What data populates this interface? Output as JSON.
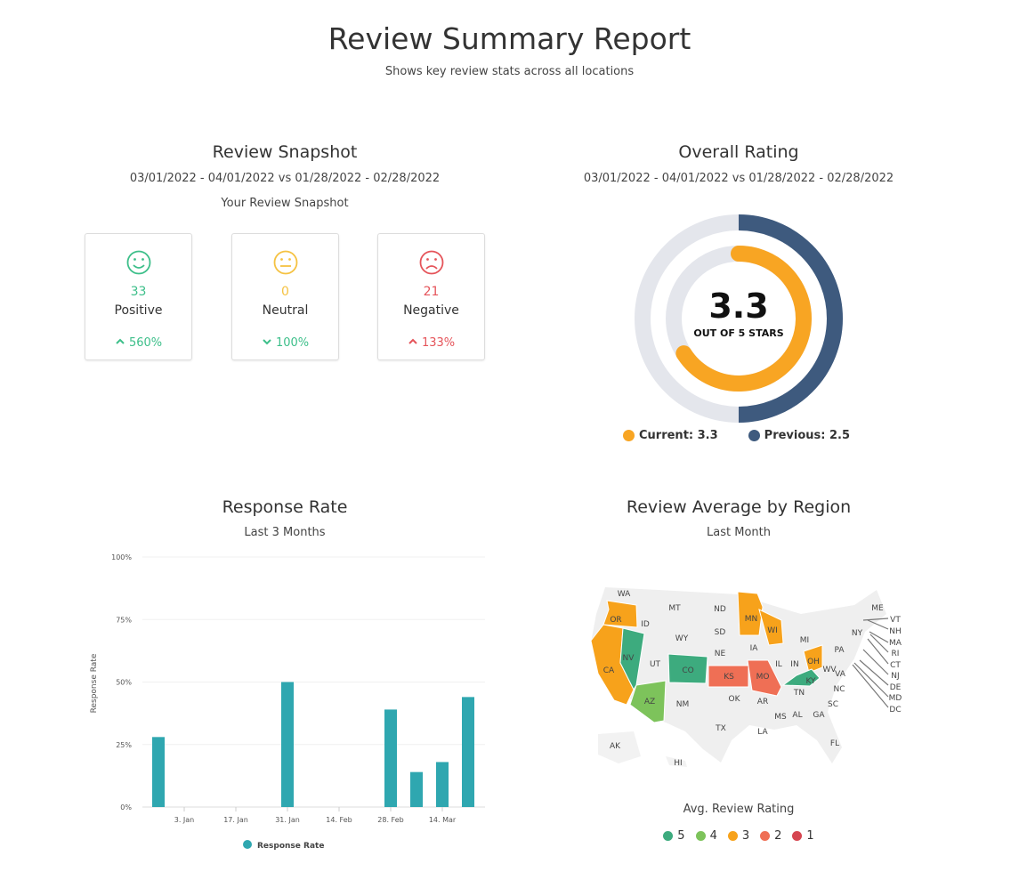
{
  "header": {
    "title": "Review Summary Report",
    "subtitle": "Shows key review stats across all locations"
  },
  "snapshot": {
    "title": "Review Snapshot",
    "date_range": "03/01/2022 - 04/01/2022 vs 01/28/2022 - 02/28/2022",
    "caption": "Your Review Snapshot",
    "cards": [
      {
        "icon": "smile-face-icon",
        "count": "33",
        "label": "Positive",
        "change": "560%",
        "direction": "up",
        "color": "#3dbf8a",
        "change_color": "#3dbf8a"
      },
      {
        "icon": "neutral-face-icon",
        "count": "0",
        "label": "Neutral",
        "change": "100%",
        "direction": "down",
        "color": "#f5c242",
        "change_color": "#3dbf8a"
      },
      {
        "icon": "sad-face-icon",
        "count": "21",
        "label": "Negative",
        "change": "133%",
        "direction": "up",
        "color": "#e5545a",
        "change_color": "#e5545a"
      }
    ]
  },
  "overall": {
    "title": "Overall Rating",
    "date_range": "03/01/2022 - 04/01/2022 vs 01/28/2022 - 02/28/2022",
    "value": "3.3",
    "value_caption": "OUT OF 5 STARS",
    "max": 5,
    "current": 3.3,
    "previous": 2.5,
    "current_label": "Current: 3.3",
    "previous_label": "Previous: 2.5",
    "current_color": "#f8a523",
    "previous_color": "#3e5a7e",
    "track_color": "#e4e6ec"
  },
  "response": {
    "title": "Response Rate",
    "subtitle": "Last 3 Months",
    "chart_data": {
      "type": "bar",
      "ylabel": "Response Rate",
      "ylim": [
        0,
        100
      ],
      "yticks": [
        "0%",
        "25%",
        "50%",
        "75%",
        "100%"
      ],
      "xticks": [
        "3. Jan",
        "17. Jan",
        "31. Jan",
        "14. Feb",
        "28. Feb",
        "14. Mar"
      ],
      "categories": [
        "2021-12-27",
        "2022-01-03",
        "2022-01-10",
        "2022-01-17",
        "2022-01-24",
        "2022-01-31",
        "2022-02-07",
        "2022-02-14",
        "2022-02-21",
        "2022-02-28",
        "2022-03-07",
        "2022-03-14",
        "2022-03-21"
      ],
      "series": [
        {
          "name": "Response Rate",
          "values": [
            28,
            0,
            0,
            0,
            0,
            50,
            0,
            0,
            0,
            39,
            14,
            18,
            44
          ],
          "color": "#2fa7b0"
        }
      ],
      "grid": true,
      "legend": "bottom"
    }
  },
  "region": {
    "title": "Review Average by Region",
    "subtitle": "Last Month",
    "legend_title": "Avg. Review Rating",
    "legend": [
      {
        "label": "5",
        "color": "#3dab7e"
      },
      {
        "label": "4",
        "color": "#7dc35b"
      },
      {
        "label": "3",
        "color": "#f7a21b"
      },
      {
        "label": "2",
        "color": "#ef6f55"
      },
      {
        "label": "1",
        "color": "#d64550"
      }
    ],
    "rated_states": {
      "OR": 3,
      "CA": 3,
      "NV": 5,
      "AZ": 4,
      "CO": 5,
      "KS": 2,
      "MO": 2,
      "MN": 3,
      "WI": 3,
      "OH": 3,
      "KY": 5
    },
    "state_labels": [
      "WA",
      "OR",
      "ID",
      "MT",
      "ND",
      "MN",
      "WI",
      "SD",
      "WY",
      "NV",
      "CA",
      "UT",
      "CO",
      "NE",
      "IA",
      "KS",
      "MO",
      "IL",
      "IN",
      "MI",
      "OH",
      "PA",
      "NY",
      "KY",
      "WV",
      "VA",
      "TN",
      "NC",
      "AZ",
      "NM",
      "OK",
      "AR",
      "MS",
      "AL",
      "GA",
      "SC",
      "TX",
      "LA",
      "FL",
      "AK",
      "HI",
      "ME",
      "VT",
      "NH",
      "MA",
      "RI",
      "CT",
      "NJ",
      "DE",
      "MD",
      "DC"
    ]
  }
}
